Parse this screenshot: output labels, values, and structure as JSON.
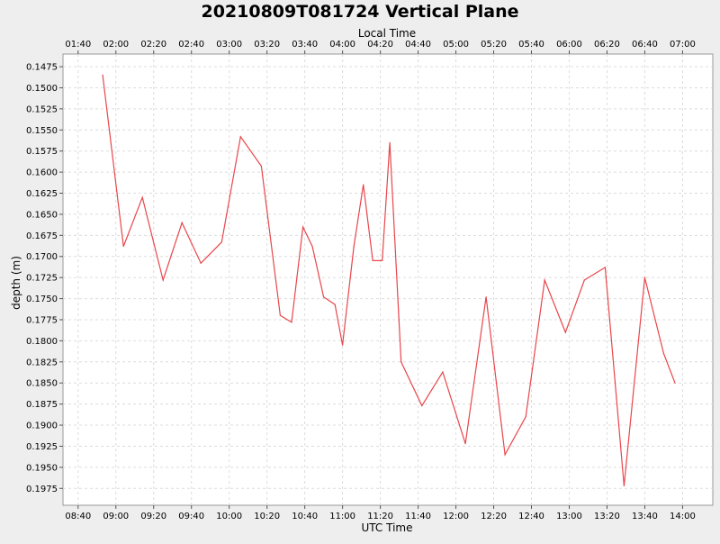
{
  "chart_data": {
    "type": "line",
    "title": "20210809T081724 Vertical Plane",
    "top_axis_label": "Local Time",
    "xlabel": "UTC Time",
    "ylabel": "depth (m)",
    "y_inverted": true,
    "ylim": [
      0.146,
      0.1995
    ],
    "xlim_utc": [
      "08:32",
      "14:16"
    ],
    "x_ticks_utc": [
      "08:40",
      "09:00",
      "09:20",
      "09:40",
      "10:00",
      "10:20",
      "10:40",
      "11:00",
      "11:20",
      "11:40",
      "12:00",
      "12:20",
      "12:40",
      "13:00",
      "13:20",
      "13:40",
      "14:00"
    ],
    "x_ticks_local": [
      "01:40",
      "02:00",
      "02:20",
      "02:40",
      "03:00",
      "03:20",
      "03:40",
      "04:00",
      "04:20",
      "04:40",
      "05:00",
      "05:20",
      "05:40",
      "06:00",
      "06:20",
      "06:40",
      "07:00"
    ],
    "y_ticks": [
      "0.1475",
      "0.1500",
      "0.1525",
      "0.1550",
      "0.1575",
      "0.1600",
      "0.1625",
      "0.1650",
      "0.1675",
      "0.1700",
      "0.1725",
      "0.1750",
      "0.1775",
      "0.1800",
      "0.1825",
      "0.1850",
      "0.1875",
      "0.1900",
      "0.1925",
      "0.1950",
      "0.1975"
    ],
    "grid": true,
    "line_color": "#e8464b",
    "series": [
      {
        "x": [
          "08:53",
          "09:04",
          "09:14",
          "09:25",
          "09:35",
          "09:45",
          "09:56",
          "10:06",
          "10:17",
          "10:27",
          "10:33",
          "10:39",
          "10:44",
          "10:50",
          "10:56",
          "11:00",
          "11:06",
          "11:11",
          "11:16",
          "11:21",
          "11:25",
          "11:31",
          "11:42",
          "11:53",
          "12:05",
          "12:16",
          "12:26",
          "12:37",
          "12:47",
          "12:58",
          "13:08",
          "13:19",
          "13:29",
          "13:40",
          "13:50",
          "13:56"
        ],
        "y": [
          0.1485,
          0.1688,
          0.163,
          0.1728,
          0.166,
          0.1708,
          0.1683,
          0.1558,
          0.1593,
          0.177,
          0.1778,
          0.1665,
          0.1688,
          0.1748,
          0.1757,
          0.1805,
          0.1688,
          0.1615,
          0.1705,
          0.1705,
          0.1565,
          0.1825,
          0.1877,
          0.1837,
          0.1922,
          0.1748,
          0.1935,
          0.189,
          0.1728,
          0.179,
          0.1728,
          0.1713,
          0.1972,
          0.1725,
          0.1815,
          0.185
        ]
      }
    ]
  }
}
